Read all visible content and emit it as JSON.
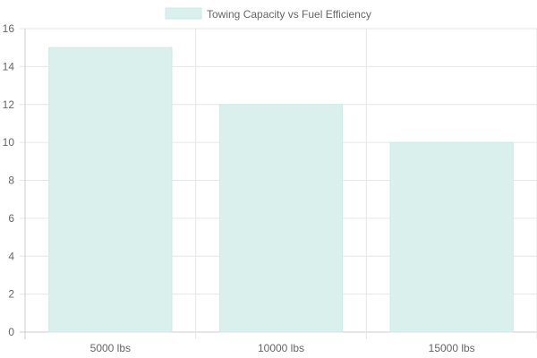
{
  "chart_data": {
    "type": "bar",
    "categories": [
      "5000 lbs",
      "10000 lbs",
      "15000 lbs"
    ],
    "series": [
      {
        "name": "Towing Capacity vs Fuel Efficiency",
        "values": [
          15,
          12,
          10
        ]
      }
    ],
    "ylim": [
      0,
      16
    ],
    "yticks": [
      0,
      2,
      4,
      6,
      8,
      10,
      12,
      14,
      16
    ],
    "grid": true,
    "legend_position": "top",
    "colors": {
      "bar_fill": "#d9f0ed",
      "bar_stroke": "#cdebe6",
      "grid": "#e6e6e6",
      "axis": "#cccccc",
      "text": "#666666"
    }
  }
}
